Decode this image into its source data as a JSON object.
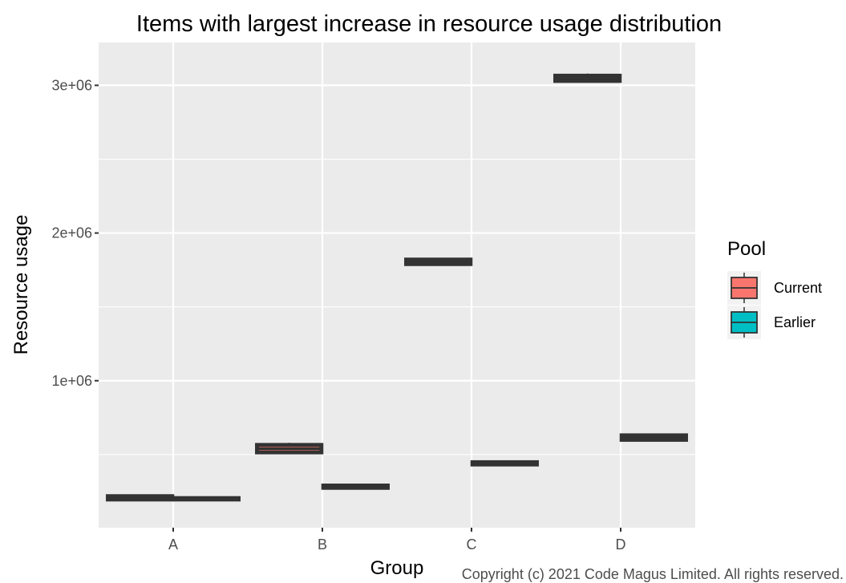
{
  "chart_data": {
    "type": "boxplot",
    "title": "Items with largest increase in resource usage distribution",
    "xlabel": "Group",
    "ylabel": "Resource usage",
    "categories": [
      "A",
      "B",
      "C",
      "D"
    ],
    "ylim": [
      5000,
      3290000
    ],
    "yticks": [
      1000000,
      2000000,
      3000000
    ],
    "ytick_labels": [
      "1e+06",
      "2e+06",
      "3e+06"
    ],
    "grid": true,
    "legend": {
      "title": "Pool",
      "placement": "right",
      "entries": [
        {
          "name": "Current",
          "color": "#F8766D"
        },
        {
          "name": "Earlier",
          "color": "#00BFC4"
        }
      ]
    },
    "series": [
      {
        "name": "Current",
        "color": "#F8766D",
        "boxes": [
          {
            "category": "A",
            "min": 195000,
            "q1": 196000,
            "median": 199000,
            "q3": 218000,
            "max": 222000
          },
          {
            "category": "B",
            "min": 510000,
            "q1": 515000,
            "median": 540000,
            "q3": 565000,
            "max": 580000
          },
          {
            "category": "C",
            "min": 1785000,
            "q1": 1790000,
            "median": 1805000,
            "q3": 1820000,
            "max": 1830000
          },
          {
            "category": "D",
            "min": 3020000,
            "q1": 3030000,
            "median": 3045000,
            "q3": 3065000,
            "max": 3080000
          }
        ]
      },
      {
        "name": "Earlier",
        "color": "#00BFC4",
        "boxes": [
          {
            "category": "A",
            "min": 195000,
            "q1": 196000,
            "median": 200000,
            "q3": 205000,
            "max": 206000
          },
          {
            "category": "B",
            "min": 270000,
            "q1": 275000,
            "median": 280000,
            "q3": 290000,
            "max": 292000
          },
          {
            "category": "C",
            "min": 430000,
            "q1": 433000,
            "median": 440000,
            "q3": 448000,
            "max": 450000
          },
          {
            "category": "D",
            "min": 595000,
            "q1": 600000,
            "median": 615000,
            "q3": 630000,
            "max": 635000
          }
        ]
      }
    ]
  },
  "copyright": "Copyright (c) 2021 Code Magus Limited. All rights reserved."
}
